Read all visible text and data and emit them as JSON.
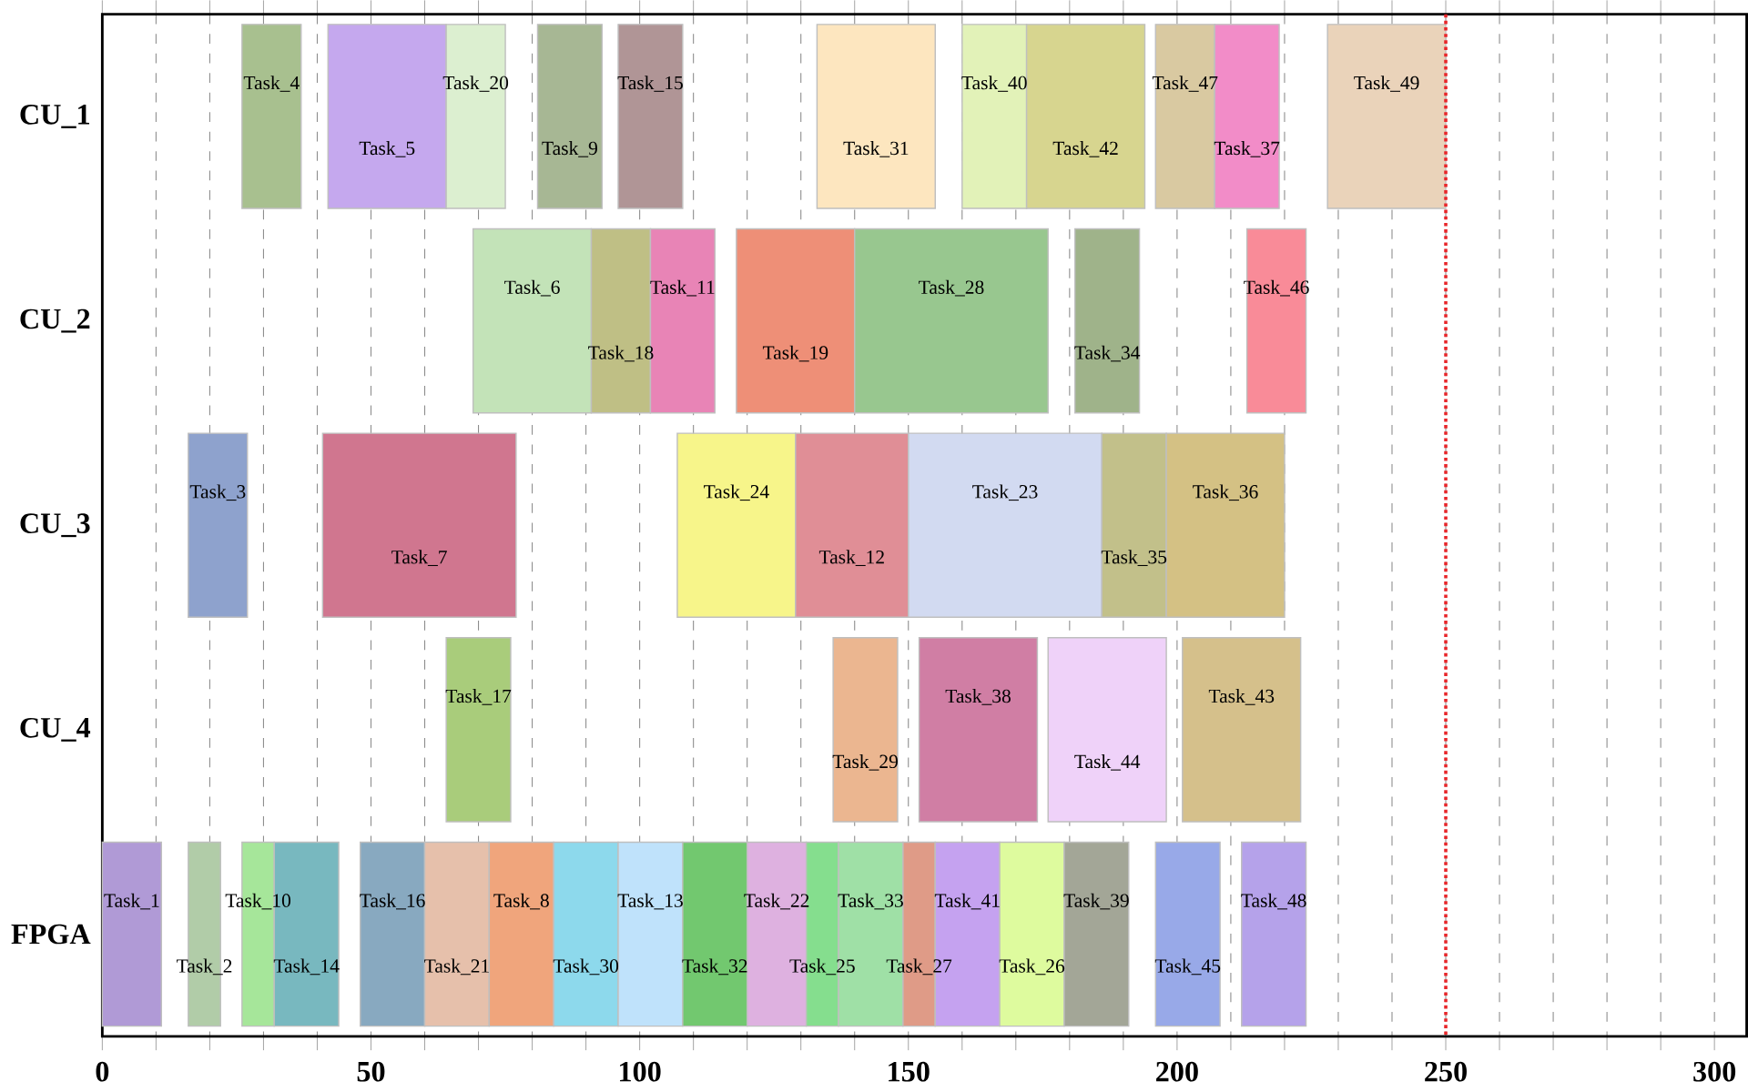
{
  "chart_data": {
    "type": "bar",
    "orientation": "horizontal",
    "categories": [
      "CU_1",
      "CU_2",
      "CU_3",
      "CU_4",
      "FPGA"
    ],
    "xlim": [
      0,
      306
    ],
    "xticks": [
      0,
      {
        "value": 10,
        "label": null
      },
      {
        "value": 20,
        "label": null
      },
      {
        "value": 30,
        "label": null
      },
      {
        "value": 40,
        "label": null
      },
      50,
      {
        "value": 60,
        "label": null
      },
      {
        "value": 70,
        "label": null
      },
      {
        "value": 80,
        "label": null
      },
      {
        "value": 90,
        "label": null
      },
      100,
      {
        "value": 110,
        "label": null
      },
      {
        "value": 120,
        "label": null
      },
      {
        "value": 130,
        "label": null
      },
      {
        "value": 140,
        "label": null
      },
      150,
      {
        "value": 160,
        "label": null
      },
      {
        "value": 170,
        "label": null
      },
      {
        "value": 180,
        "label": null
      },
      {
        "value": 190,
        "label": null
      },
      200,
      {
        "value": 210,
        "label": null
      },
      {
        "value": 220,
        "label": null
      },
      {
        "value": 230,
        "label": null
      },
      {
        "value": 240,
        "label": null
      },
      250,
      {
        "value": 260,
        "label": null
      },
      {
        "value": 270,
        "label": null
      },
      {
        "value": 280,
        "label": null
      },
      {
        "value": 290,
        "label": null
      },
      300
    ],
    "grid": "x",
    "ref_lines": [
      {
        "axis": "x",
        "value": 250,
        "color": "#e8262a",
        "line_style": "dotted"
      }
    ],
    "series": [
      {
        "name": "Task_4",
        "color": "#a8c08f",
        "values": [
          11,
          null,
          null,
          null,
          null
        ],
        "base": [
          26,
          null,
          null,
          null,
          null
        ]
      },
      {
        "name": "Task_5",
        "color": "#c5a8ee",
        "values": [
          22,
          null,
          null,
          null,
          null
        ],
        "base": [
          42,
          null,
          null,
          null,
          null
        ]
      },
      {
        "name": "Task_20",
        "color": "#dcefd0",
        "values": [
          11,
          null,
          null,
          null,
          null
        ],
        "base": [
          64,
          null,
          null,
          null,
          null
        ]
      },
      {
        "name": "Task_9",
        "color": "#a7b794",
        "values": [
          12,
          null,
          null,
          null,
          null
        ],
        "base": [
          81,
          null,
          null,
          null,
          null
        ]
      },
      {
        "name": "Task_15",
        "color": "#b09596",
        "values": [
          12,
          null,
          null,
          null,
          null
        ],
        "base": [
          96,
          null,
          null,
          null,
          null
        ]
      },
      {
        "name": "Task_31",
        "color": "#fde6bf",
        "values": [
          22,
          null,
          null,
          null,
          null
        ],
        "base": [
          133,
          null,
          null,
          null,
          null
        ]
      },
      {
        "name": "Task_40",
        "color": "#e2f2b8",
        "values": [
          12,
          null,
          null,
          null,
          null
        ],
        "base": [
          160,
          null,
          null,
          null,
          null
        ]
      },
      {
        "name": "Task_42",
        "color": "#d7d58f",
        "values": [
          22,
          null,
          null,
          null,
          null
        ],
        "base": [
          172,
          null,
          null,
          null,
          null
        ]
      },
      {
        "name": "Task_47",
        "color": "#d9c9a1",
        "values": [
          11,
          null,
          null,
          null,
          null
        ],
        "base": [
          196,
          null,
          null,
          null,
          null
        ]
      },
      {
        "name": "Task_37",
        "color": "#f28cc8",
        "values": [
          12,
          null,
          null,
          null,
          null
        ],
        "base": [
          207,
          null,
          null,
          null,
          null
        ]
      },
      {
        "name": "Task_49",
        "color": "#ead3ba",
        "values": [
          22,
          null,
          null,
          null,
          null
        ],
        "base": [
          228,
          null,
          null,
          null,
          null
        ]
      },
      {
        "name": "Task_6",
        "color": "#c3e3b8",
        "values": [
          null,
          22,
          null,
          null,
          null
        ],
        "base": [
          null,
          69,
          null,
          null,
          null
        ]
      },
      {
        "name": "Task_18",
        "color": "#bfbf85",
        "values": [
          null,
          11,
          null,
          null,
          null
        ],
        "base": [
          null,
          91,
          null,
          null,
          null
        ]
      },
      {
        "name": "Task_11",
        "color": "#e884b6",
        "values": [
          null,
          12,
          null,
          null,
          null
        ],
        "base": [
          null,
          102,
          null,
          null,
          null
        ]
      },
      {
        "name": "Task_19",
        "color": "#ee8f77",
        "values": [
          null,
          22,
          null,
          null,
          null
        ],
        "base": [
          null,
          118,
          null,
          null,
          null
        ]
      },
      {
        "name": "Task_28",
        "color": "#98c78f",
        "values": [
          null,
          36,
          null,
          null,
          null
        ],
        "base": [
          null,
          140,
          null,
          null,
          null
        ]
      },
      {
        "name": "Task_34",
        "color": "#9fb38a",
        "values": [
          null,
          12,
          null,
          null,
          null
        ],
        "base": [
          null,
          181,
          null,
          null,
          null
        ]
      },
      {
        "name": "Task_46",
        "color": "#f98b98",
        "values": [
          null,
          11,
          null,
          null,
          null
        ],
        "base": [
          null,
          213,
          null,
          null,
          null
        ]
      },
      {
        "name": "Task_3",
        "color": "#8ea2cd",
        "values": [
          null,
          null,
          11,
          null,
          null
        ],
        "base": [
          null,
          null,
          16,
          null,
          null
        ]
      },
      {
        "name": "Task_7",
        "color": "#d0768f",
        "values": [
          null,
          null,
          36,
          null,
          null
        ],
        "base": [
          null,
          null,
          41,
          null,
          null
        ]
      },
      {
        "name": "Task_24",
        "color": "#f7f58a",
        "values": [
          null,
          null,
          22,
          null,
          null
        ],
        "base": [
          null,
          null,
          107,
          null,
          null
        ]
      },
      {
        "name": "Task_12",
        "color": "#e08e96",
        "values": [
          null,
          null,
          21,
          null,
          null
        ],
        "base": [
          null,
          null,
          129,
          null,
          null
        ]
      },
      {
        "name": "Task_23",
        "color": "#d2daf1",
        "values": [
          null,
          null,
          36,
          null,
          null
        ],
        "base": [
          null,
          null,
          150,
          null,
          null
        ]
      },
      {
        "name": "Task_35",
        "color": "#c2c08a",
        "values": [
          null,
          null,
          12,
          null,
          null
        ],
        "base": [
          null,
          null,
          186,
          null,
          null
        ]
      },
      {
        "name": "Task_36",
        "color": "#d4c184",
        "values": [
          null,
          null,
          22,
          null,
          null
        ],
        "base": [
          null,
          null,
          198,
          null,
          null
        ]
      },
      {
        "name": "Task_17",
        "color": "#a9cc7b",
        "values": [
          null,
          null,
          null,
          12,
          null
        ],
        "base": [
          null,
          null,
          null,
          64,
          null
        ]
      },
      {
        "name": "Task_29",
        "color": "#ebb690",
        "values": [
          null,
          null,
          null,
          12,
          null
        ],
        "base": [
          null,
          null,
          null,
          136,
          null
        ]
      },
      {
        "name": "Task_38",
        "color": "#d07ea4",
        "values": [
          null,
          null,
          null,
          22,
          null
        ],
        "base": [
          null,
          null,
          null,
          152,
          null
        ]
      },
      {
        "name": "Task_44",
        "color": "#efd2f9",
        "values": [
          null,
          null,
          null,
          22,
          null
        ],
        "base": [
          null,
          null,
          null,
          176,
          null
        ]
      },
      {
        "name": "Task_43",
        "color": "#d5c08b",
        "values": [
          null,
          null,
          null,
          22,
          null
        ],
        "base": [
          null,
          null,
          null,
          201,
          null
        ]
      },
      {
        "name": "Task_1",
        "color": "#b09ad6",
        "values": [
          null,
          null,
          null,
          null,
          11
        ],
        "base": [
          null,
          null,
          null,
          null,
          0
        ]
      },
      {
        "name": "Task_2",
        "color": "#b1cca8",
        "values": [
          null,
          null,
          null,
          null,
          6
        ],
        "base": [
          null,
          null,
          null,
          null,
          16
        ]
      },
      {
        "name": "Task_10",
        "color": "#a6e69a",
        "values": [
          null,
          null,
          null,
          null,
          6
        ],
        "base": [
          null,
          null,
          null,
          null,
          26
        ]
      },
      {
        "name": "Task_14",
        "color": "#78b8bf",
        "values": [
          null,
          null,
          null,
          null,
          12
        ],
        "base": [
          null,
          null,
          null,
          null,
          32
        ]
      },
      {
        "name": "Task_16",
        "color": "#88a9c0",
        "values": [
          null,
          null,
          null,
          null,
          12
        ],
        "base": [
          null,
          null,
          null,
          null,
          48
        ]
      },
      {
        "name": "Task_21",
        "color": "#e6c0ab",
        "values": [
          null,
          null,
          null,
          null,
          12
        ],
        "base": [
          null,
          null,
          null,
          null,
          60
        ]
      },
      {
        "name": "Task_8",
        "color": "#f0a57c",
        "values": [
          null,
          null,
          null,
          null,
          12
        ],
        "base": [
          null,
          null,
          null,
          null,
          72
        ]
      },
      {
        "name": "Task_30",
        "color": "#8dd9ec",
        "values": [
          null,
          null,
          null,
          null,
          12
        ],
        "base": [
          null,
          null,
          null,
          null,
          84
        ]
      },
      {
        "name": "Task_13",
        "color": "#bfe2fb",
        "values": [
          null,
          null,
          null,
          null,
          12
        ],
        "base": [
          null,
          null,
          null,
          null,
          96
        ]
      },
      {
        "name": "Task_32",
        "color": "#72c86f",
        "values": [
          null,
          null,
          null,
          null,
          12
        ],
        "base": [
          null,
          null,
          null,
          null,
          108
        ]
      },
      {
        "name": "Task_22",
        "color": "#deb1e0",
        "values": [
          null,
          null,
          null,
          null,
          11
        ],
        "base": [
          null,
          null,
          null,
          null,
          120
        ]
      },
      {
        "name": "Task_25",
        "color": "#85de8e",
        "values": [
          null,
          null,
          null,
          null,
          6
        ],
        "base": [
          null,
          null,
          null,
          null,
          131
        ]
      },
      {
        "name": "Task_33",
        "color": "#9fe0a6",
        "values": [
          null,
          null,
          null,
          null,
          12
        ],
        "base": [
          null,
          null,
          null,
          null,
          137
        ]
      },
      {
        "name": "Task_27",
        "color": "#df9b87",
        "values": [
          null,
          null,
          null,
          null,
          6
        ],
        "base": [
          null,
          null,
          null,
          null,
          149
        ]
      },
      {
        "name": "Task_41",
        "color": "#c5a2f0",
        "values": [
          null,
          null,
          null,
          null,
          12
        ],
        "base": [
          null,
          null,
          null,
          null,
          155
        ]
      },
      {
        "name": "Task_26",
        "color": "#defb9e",
        "values": [
          null,
          null,
          null,
          null,
          12
        ],
        "base": [
          null,
          null,
          null,
          null,
          167
        ]
      },
      {
        "name": "Task_39",
        "color": "#a3a697",
        "values": [
          null,
          null,
          null,
          null,
          12
        ],
        "base": [
          null,
          null,
          null,
          null,
          179
        ]
      },
      {
        "name": "Task_45",
        "color": "#98a9e8",
        "values": [
          null,
          null,
          null,
          null,
          12
        ],
        "base": [
          null,
          null,
          null,
          null,
          196
        ]
      },
      {
        "name": "Task_48",
        "color": "#b5a2ea",
        "values": [
          null,
          null,
          null,
          null,
          12
        ],
        "base": [
          null,
          null,
          null,
          null,
          212
        ]
      }
    ]
  }
}
